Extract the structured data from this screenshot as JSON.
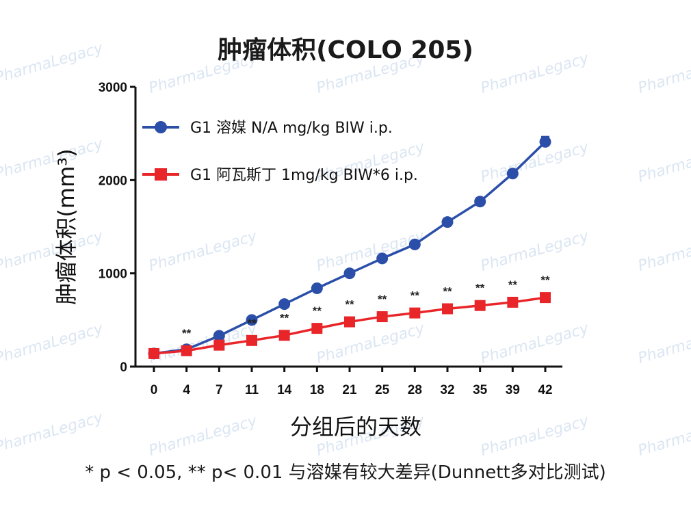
{
  "chart_data": {
    "type": "line",
    "title": "肿瘤体积(COLO 205)",
    "xlabel": "分组后的天数",
    "ylabel": "肿瘤体积(mm³)",
    "x": [
      0,
      4,
      7,
      11,
      14,
      18,
      21,
      25,
      28,
      32,
      35,
      39,
      42
    ],
    "x_tick_labels": [
      "0",
      "4",
      "7",
      "11",
      "14",
      "18",
      "21",
      "25",
      "28",
      "32",
      "35",
      "39",
      "42"
    ],
    "ylim": [
      0,
      3000
    ],
    "y_ticks": [
      0,
      1000,
      2000,
      3000
    ],
    "y_tick_labels": [
      "0",
      "1000",
      "2000",
      "3000"
    ],
    "legend_position": "top-left",
    "series": [
      {
        "name": "G1 溶媒 N/A mg/kg BIW i.p.",
        "color": "#2b4fa8",
        "marker": "circle",
        "values": [
          140,
          185,
          330,
          500,
          670,
          840,
          1000,
          1160,
          1310,
          1550,
          1770,
          2070,
          2410
        ],
        "error": [
          15,
          15,
          20,
          20,
          20,
          20,
          25,
          25,
          25,
          30,
          35,
          40,
          55
        ]
      },
      {
        "name": "G1 阿瓦斯丁 1mg/kg BIW*6 i.p.",
        "color": "#e8262a",
        "marker": "square",
        "values": [
          140,
          170,
          230,
          280,
          335,
          410,
          480,
          535,
          575,
          620,
          655,
          690,
          740
        ],
        "error": [
          12,
          12,
          15,
          15,
          18,
          18,
          20,
          20,
          20,
          22,
          22,
          25,
          28
        ]
      }
    ],
    "annotations": [
      "",
      "**",
      "",
      "**",
      "**",
      "**",
      "**",
      "**",
      "**",
      "**",
      "**",
      "**",
      "**"
    ]
  },
  "footnote": "* p < 0.05, ** p< 0.01 与溶媒有较大差异(Dunnett多对比测试)",
  "watermark": "PharmaLegacy"
}
